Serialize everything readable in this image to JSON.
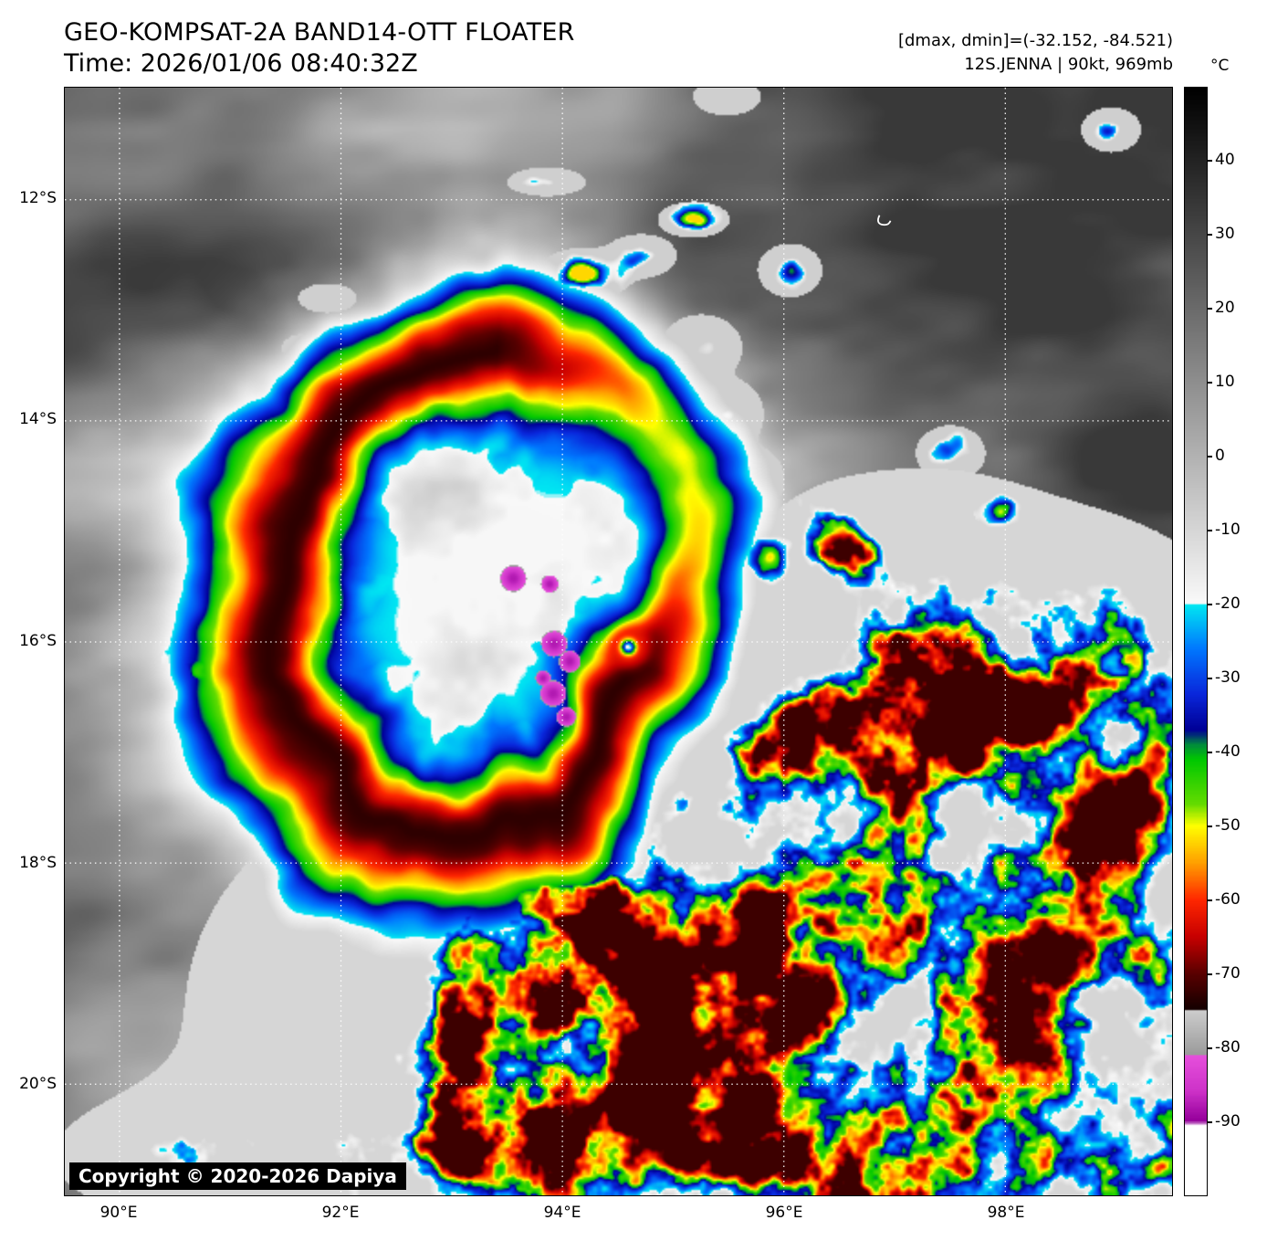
{
  "header": {
    "title": "GEO-KOMPSAT-2A BAND14-OTT FLOATER",
    "time": "Time: 2026/01/06 08:40:32Z",
    "dmax_dmin": "[dmax, dmin]=(-32.152, -84.521)",
    "storm": "12S.JENNA | 90kt, 969mb"
  },
  "colorbar": {
    "unit": "°C",
    "domain": [
      50,
      -100
    ],
    "ticks": [
      40,
      30,
      20,
      10,
      0,
      -10,
      -20,
      -30,
      -40,
      -50,
      -60,
      -70,
      -80,
      -90
    ],
    "stops": [
      [
        50,
        "#000000"
      ],
      [
        -19.9,
        "#fafafa"
      ],
      [
        -20,
        "#00e8f2"
      ],
      [
        -26,
        "#0078ff"
      ],
      [
        -32,
        "#0a28dc"
      ],
      [
        -37,
        "#000096"
      ],
      [
        -39,
        "#008c3c"
      ],
      [
        -41,
        "#00c800"
      ],
      [
        -47,
        "#64dc00"
      ],
      [
        -50,
        "#ffff00"
      ],
      [
        -55,
        "#ffa000"
      ],
      [
        -60,
        "#ff2800"
      ],
      [
        -65,
        "#c80000"
      ],
      [
        -70,
        "#5a0000"
      ],
      [
        -74.9,
        "#140000"
      ],
      [
        -75,
        "#cdcdcd"
      ],
      [
        -81,
        "#9b9b9b"
      ],
      [
        -81.1,
        "#e650dc"
      ],
      [
        -86,
        "#cd32c8"
      ],
      [
        -90,
        "#96009b"
      ],
      [
        -90.6,
        "#ffffff"
      ],
      [
        -100,
        "#ffffff"
      ]
    ]
  },
  "axes": {
    "lat_labels": [
      "12°S",
      "14°S",
      "16°S",
      "18°S",
      "20°S"
    ],
    "lon_labels": [
      "90°E",
      "92°E",
      "94°E",
      "96°E",
      "98°E"
    ]
  },
  "map": {
    "copyright": "Copyright © 2020-2026 Dapiya"
  }
}
